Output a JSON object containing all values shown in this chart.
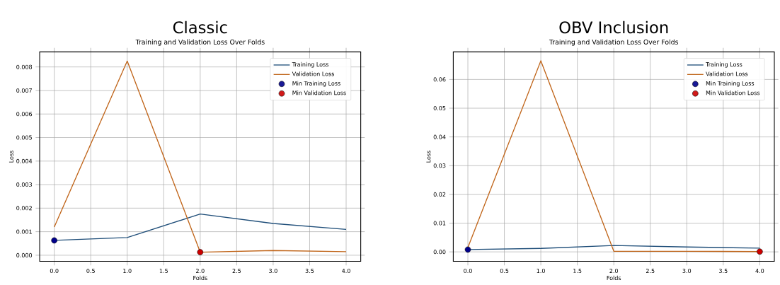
{
  "chart_data": [
    {
      "type": "line",
      "title": "Classic",
      "subtitle": "Training and Validation Loss Over Folds",
      "xlabel": "Folds",
      "ylabel": "Loss",
      "x": [
        0,
        1,
        2,
        3,
        4
      ],
      "series": [
        {
          "name": "Training Loss",
          "type": "line",
          "color": "#1f4e79",
          "values": [
            0.00063,
            0.00075,
            0.00175,
            0.00135,
            0.0011
          ]
        },
        {
          "name": "Validation Loss",
          "type": "line",
          "color": "#c0651a",
          "values": [
            0.0012,
            0.00825,
            0.00013,
            0.0002,
            0.00015
          ]
        },
        {
          "name": "Min Training Loss",
          "type": "scatter",
          "marker": "circle",
          "color": "#00008b",
          "x": [
            0
          ],
          "values": [
            0.00063
          ]
        },
        {
          "name": "Min Validation Loss",
          "type": "scatter",
          "marker": "circle",
          "color": "#cc0000",
          "x": [
            2
          ],
          "values": [
            0.00013
          ]
        }
      ],
      "xlim": [
        -0.2,
        4.2
      ],
      "ylim": [
        -0.00026,
        0.00864
      ],
      "xticks": [
        {
          "value": 0,
          "label": "0.0"
        },
        {
          "value": 0.5,
          "label": "0.5"
        },
        {
          "value": 1,
          "label": "1.0"
        },
        {
          "value": 1.5,
          "label": "1.5"
        },
        {
          "value": 2,
          "label": "2.0"
        },
        {
          "value": 2.5,
          "label": "2.5"
        },
        {
          "value": 3,
          "label": "3.0"
        },
        {
          "value": 3.5,
          "label": "3.5"
        },
        {
          "value": 4,
          "label": "4.0"
        }
      ],
      "yticks": [
        {
          "value": 0,
          "label": "0.000"
        },
        {
          "value": 0.001,
          "label": "0.001"
        },
        {
          "value": 0.002,
          "label": "0.002"
        },
        {
          "value": 0.003,
          "label": "0.003"
        },
        {
          "value": 0.004,
          "label": "0.004"
        },
        {
          "value": 0.005,
          "label": "0.005"
        },
        {
          "value": 0.006,
          "label": "0.006"
        },
        {
          "value": 0.007,
          "label": "0.007"
        },
        {
          "value": 0.008,
          "label": "0.008"
        }
      ],
      "grid": true,
      "legend": "top right"
    },
    {
      "type": "line",
      "title": "OBV Inclusion",
      "subtitle": "Training and Validation Loss Over Folds",
      "xlabel": "Folds",
      "ylabel": "Loss",
      "x": [
        0,
        1,
        2,
        3,
        4
      ],
      "series": [
        {
          "name": "Training Loss",
          "type": "line",
          "color": "#1f4e79",
          "values": [
            0.0008,
            0.0012,
            0.0022,
            0.0017,
            0.0013
          ]
        },
        {
          "name": "Validation Loss",
          "type": "line",
          "color": "#c0651a",
          "values": [
            0.0015,
            0.0665,
            0.0002,
            0.0002,
            0.0001
          ]
        },
        {
          "name": "Min Training Loss",
          "type": "scatter",
          "marker": "circle",
          "color": "#00008b",
          "x": [
            0
          ],
          "values": [
            0.0008
          ]
        },
        {
          "name": "Min Validation Loss",
          "type": "scatter",
          "marker": "circle",
          "color": "#cc0000",
          "x": [
            4
          ],
          "values": [
            0.0001
          ]
        }
      ],
      "xlim": [
        -0.2,
        4.2
      ],
      "ylim": [
        -0.0033,
        0.0696
      ],
      "xticks": [
        {
          "value": 0,
          "label": "0.0"
        },
        {
          "value": 0.5,
          "label": "0.5"
        },
        {
          "value": 1,
          "label": "1.0"
        },
        {
          "value": 1.5,
          "label": "1.5"
        },
        {
          "value": 2,
          "label": "2.0"
        },
        {
          "value": 2.5,
          "label": "2.5"
        },
        {
          "value": 3,
          "label": "3.0"
        },
        {
          "value": 3.5,
          "label": "3.5"
        },
        {
          "value": 4,
          "label": "4.0"
        }
      ],
      "yticks": [
        {
          "value": 0,
          "label": "0.00"
        },
        {
          "value": 0.01,
          "label": "0.01"
        },
        {
          "value": 0.02,
          "label": "0.02"
        },
        {
          "value": 0.03,
          "label": "0.03"
        },
        {
          "value": 0.04,
          "label": "0.04"
        },
        {
          "value": 0.05,
          "label": "0.05"
        },
        {
          "value": 0.06,
          "label": "0.06"
        }
      ],
      "grid": true,
      "legend": "top right"
    }
  ]
}
